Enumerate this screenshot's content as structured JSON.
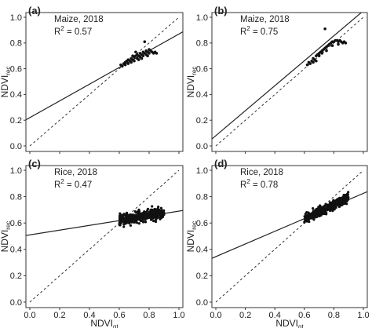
{
  "chart_data": [
    {
      "type": "scatter",
      "panel": "(a)",
      "annotation_line1": "Maize, 2018",
      "r2_label": "R",
      "r2_sup": "2",
      "r2_value": " = 0.57",
      "ylabel_main": "NDVI",
      "ylabel_sub": "rec",
      "xlabel_main": "",
      "xlabel_sub": "",
      "xlim": [
        0.0,
        1.0
      ],
      "ylim": [
        0.0,
        1.0
      ],
      "xticks": [
        "0.0",
        "0.2",
        "0.4",
        "0.6",
        "0.8",
        "1.0"
      ],
      "yticks": [
        "0.0",
        "0.2",
        "0.4",
        "0.6",
        "0.8",
        "1.0"
      ],
      "show_x_tick_labels": false,
      "fit_line": {
        "slope": 0.65,
        "intercept": 0.22
      },
      "reference_line": "1:1 dashed",
      "points": [
        [
          0.61,
          0.63
        ],
        [
          0.62,
          0.62
        ],
        [
          0.63,
          0.64
        ],
        [
          0.64,
          0.63
        ],
        [
          0.64,
          0.65
        ],
        [
          0.65,
          0.66
        ],
        [
          0.66,
          0.64
        ],
        [
          0.66,
          0.67
        ],
        [
          0.67,
          0.66
        ],
        [
          0.68,
          0.68
        ],
        [
          0.68,
          0.65
        ],
        [
          0.69,
          0.67
        ],
        [
          0.7,
          0.69
        ],
        [
          0.7,
          0.66
        ],
        [
          0.71,
          0.7
        ],
        [
          0.72,
          0.68
        ],
        [
          0.72,
          0.71
        ],
        [
          0.73,
          0.7
        ],
        [
          0.74,
          0.72
        ],
        [
          0.74,
          0.69
        ],
        [
          0.75,
          0.71
        ],
        [
          0.76,
          0.73
        ],
        [
          0.76,
          0.7
        ],
        [
          0.77,
          0.72
        ],
        [
          0.78,
          0.74
        ],
        [
          0.78,
          0.71
        ],
        [
          0.79,
          0.73
        ],
        [
          0.8,
          0.72
        ],
        [
          0.81,
          0.74
        ],
        [
          0.82,
          0.73
        ],
        [
          0.83,
          0.72
        ],
        [
          0.84,
          0.73
        ],
        [
          0.85,
          0.72
        ],
        [
          0.77,
          0.81
        ],
        [
          0.71,
          0.73
        ],
        [
          0.69,
          0.7
        ],
        [
          0.73,
          0.67
        ],
        [
          0.8,
          0.75
        ],
        [
          0.79,
          0.7
        ],
        [
          0.75,
          0.68
        ]
      ]
    },
    {
      "type": "scatter",
      "panel": "(b)",
      "annotation_line1": "Maize, 2018",
      "r2_label": "R",
      "r2_sup": "2",
      "r2_value": " = 0.75",
      "ylabel_main": "NDVI",
      "ylabel_sub": "rec",
      "xlabel_main": "",
      "xlabel_sub": "",
      "xlim": [
        0.0,
        1.0
      ],
      "ylim": [
        0.0,
        1.0
      ],
      "xticks": [
        "0.0",
        "0.2",
        "0.4",
        "0.6",
        "0.8",
        "1.0"
      ],
      "yticks": [
        "0.0",
        "0.2",
        "0.4",
        "0.6",
        "0.8",
        "1.0"
      ],
      "show_x_tick_labels": false,
      "fit_line": {
        "slope": 0.97,
        "intercept": 0.08
      },
      "reference_line": "1:1 dashed",
      "points": [
        [
          0.62,
          0.63
        ],
        [
          0.63,
          0.65
        ],
        [
          0.64,
          0.64
        ],
        [
          0.65,
          0.66
        ],
        [
          0.66,
          0.68
        ],
        [
          0.67,
          0.67
        ],
        [
          0.68,
          0.7
        ],
        [
          0.69,
          0.71
        ],
        [
          0.7,
          0.72
        ],
        [
          0.7,
          0.7
        ],
        [
          0.71,
          0.73
        ],
        [
          0.72,
          0.74
        ],
        [
          0.73,
          0.75
        ],
        [
          0.74,
          0.76
        ],
        [
          0.75,
          0.77
        ],
        [
          0.76,
          0.78
        ],
        [
          0.77,
          0.79
        ],
        [
          0.78,
          0.8
        ],
        [
          0.79,
          0.81
        ],
        [
          0.8,
          0.81
        ],
        [
          0.81,
          0.82
        ],
        [
          0.82,
          0.82
        ],
        [
          0.83,
          0.81
        ],
        [
          0.84,
          0.82
        ],
        [
          0.85,
          0.81
        ],
        [
          0.86,
          0.8
        ],
        [
          0.87,
          0.81
        ],
        [
          0.88,
          0.8
        ],
        [
          0.66,
          0.65
        ],
        [
          0.68,
          0.66
        ],
        [
          0.75,
          0.74
        ],
        [
          0.79,
          0.78
        ],
        [
          0.72,
          0.72
        ],
        [
          0.74,
          0.91
        ],
        [
          0.83,
          0.79
        ]
      ]
    },
    {
      "type": "scatter",
      "panel": "(c)",
      "annotation_line1": "Rice, 2018",
      "r2_label": "R",
      "r2_sup": "2",
      "r2_value": " = 0.47",
      "ylabel_main": "NDVI",
      "ylabel_sub": "rec",
      "xlabel_main": "NDVI",
      "xlabel_sub": "gt",
      "xlim": [
        0.0,
        1.0
      ],
      "ylim": [
        0.0,
        1.0
      ],
      "xticks": [
        "0.0",
        "0.2",
        "0.4",
        "0.6",
        "0.8",
        "1.0"
      ],
      "yticks": [
        "0.0",
        "0.2",
        "0.4",
        "0.6",
        "0.8",
        "1.0"
      ],
      "show_x_tick_labels": true,
      "fit_line": {
        "slope": 0.18,
        "intercept": 0.51
      },
      "reference_line": "1:1 dashed",
      "cloud": {
        "x_range": [
          0.6,
          0.9
        ],
        "y_center_slope": 0.18,
        "y_center_intercept": 0.515,
        "y_spread": 0.035,
        "count": 380
      }
    },
    {
      "type": "scatter",
      "panel": "(d)",
      "annotation_line1": "Rice, 2018",
      "r2_label": "R",
      "r2_sup": "2",
      "r2_value": " = 0.78",
      "ylabel_main": "NDVI",
      "ylabel_sub": "rec",
      "xlabel_main": "NDVI",
      "xlabel_sub": "gt",
      "xlim": [
        0.0,
        1.0
      ],
      "ylim": [
        0.0,
        1.0
      ],
      "xticks": [
        "0.0",
        "0.2",
        "0.4",
        "0.6",
        "0.8",
        "1.0"
      ],
      "yticks": [
        "0.0",
        "0.2",
        "0.4",
        "0.6",
        "0.8",
        "1.0"
      ],
      "show_x_tick_labels": true,
      "fit_line": {
        "slope": 0.48,
        "intercept": 0.345
      },
      "reference_line": "1:1 dashed",
      "cloud": {
        "x_range": [
          0.6,
          0.9
        ],
        "y_center_slope": 0.55,
        "y_center_intercept": 0.3,
        "y_spread": 0.03,
        "count": 420
      }
    }
  ]
}
